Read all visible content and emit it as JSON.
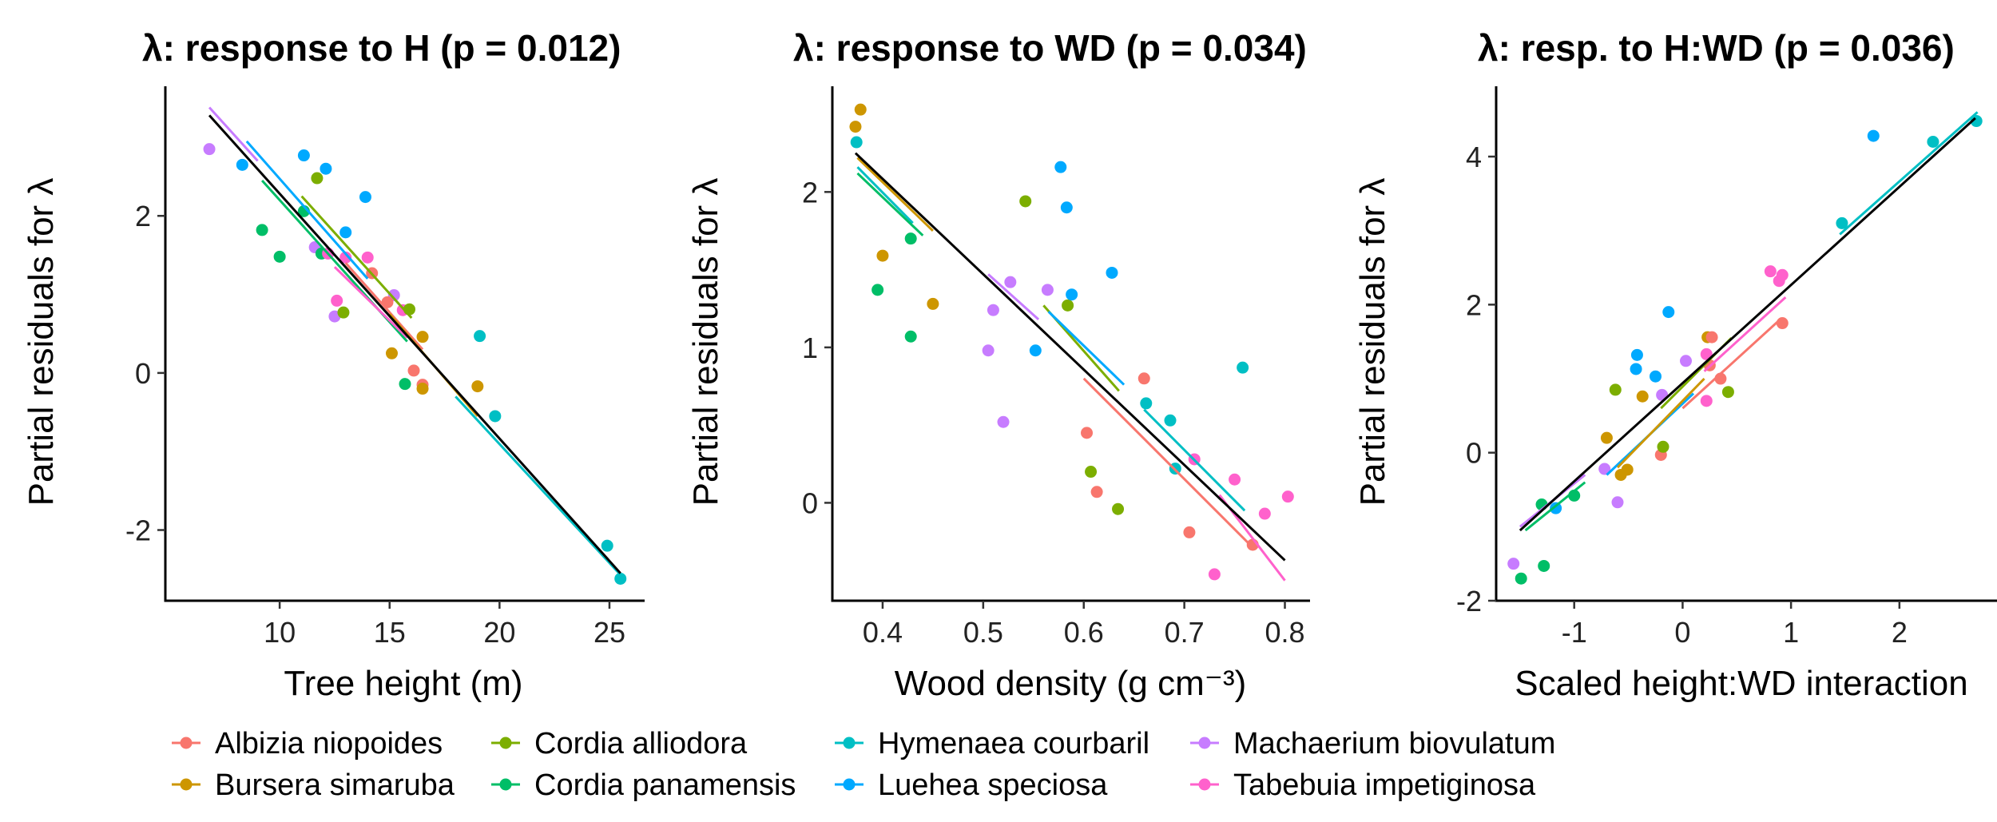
{
  "colors": {
    "Albizia niopoides": "#F8766D",
    "Bursera simaruba": "#CD9600",
    "Cordia alliodora": "#7CAE00",
    "Cordia panamensis": "#00BE67",
    "Hymenaea courbaril": "#00BFC4",
    "Luehea speciosa": "#00A9FF",
    "Machaerium biovulatum": "#C77CFF",
    "Tabebuia impetiginosa": "#FF61CC",
    "overall": "#000000"
  },
  "legend": {
    "items": [
      "Albizia niopoides",
      "Cordia alliodora",
      "Hymenaea courbaril",
      "Machaerium biovulatum",
      "Bursera simaruba",
      "Cordia panamensis",
      "Luehea speciosa",
      "Tabebuia impetiginosa"
    ]
  },
  "chart_data": [
    {
      "type": "scatter",
      "title": "λ: response to H (p = 0.012)",
      "xlabel": "Tree height (m)",
      "ylabel": "Partial residuals for λ",
      "xlim": [
        4.8,
        26.6
      ],
      "ylim": [
        -2.9,
        3.65
      ],
      "xticks": [
        10,
        15,
        20,
        25
      ],
      "yticks": [
        -2,
        0,
        2
      ],
      "overall_line": {
        "x": [
          6.8,
          25.5
        ],
        "y": [
          3.28,
          -2.55
        ]
      },
      "species_lines": [
        {
          "name": "Machaerium biovulatum",
          "x": [
            6.8,
            9.0
          ],
          "y": [
            3.38,
            2.7
          ]
        },
        {
          "name": "Luehea speciosa",
          "x": [
            8.5,
            14.0
          ],
          "y": [
            2.95,
            1.2
          ]
        },
        {
          "name": "Cordia panamensis",
          "x": [
            9.2,
            15.8
          ],
          "y": [
            2.45,
            0.4
          ]
        },
        {
          "name": "Cordia alliodora",
          "x": [
            11.0,
            16.0
          ],
          "y": [
            2.25,
            0.7
          ]
        },
        {
          "name": "Tabebuia impetiginosa",
          "x": [
            12.5,
            15.8
          ],
          "y": [
            1.35,
            0.45
          ]
        },
        {
          "name": "Albizia niopoides",
          "x": [
            13.0,
            16.5
          ],
          "y": [
            1.4,
            0.3
          ]
        },
        {
          "name": "Bursera simaruba",
          "x": [
            15.0,
            19.0
          ],
          "y": [
            0.75,
            -0.55
          ]
        },
        {
          "name": "Hymenaea courbaril",
          "x": [
            18.0,
            25.6
          ],
          "y": [
            -0.3,
            -2.6
          ]
        }
      ],
      "points": [
        {
          "s": "Machaerium biovulatum",
          "x": 6.8,
          "y": 2.85
        },
        {
          "s": "Luehea speciosa",
          "x": 8.3,
          "y": 2.65
        },
        {
          "s": "Cordia panamensis",
          "x": 9.2,
          "y": 1.82
        },
        {
          "s": "Cordia panamensis",
          "x": 10.0,
          "y": 1.48
        },
        {
          "s": "Luehea speciosa",
          "x": 11.1,
          "y": 2.77
        },
        {
          "s": "Cordia panamensis",
          "x": 11.1,
          "y": 2.06
        },
        {
          "s": "Cordia alliodora",
          "x": 11.7,
          "y": 2.48
        },
        {
          "s": "Luehea speciosa",
          "x": 12.1,
          "y": 2.6
        },
        {
          "s": "Machaerium biovulatum",
          "x": 11.6,
          "y": 1.6
        },
        {
          "s": "Cordia panamensis",
          "x": 11.9,
          "y": 1.52
        },
        {
          "s": "Tabebuia impetiginosa",
          "x": 12.2,
          "y": 1.52
        },
        {
          "s": "Luehea speciosa",
          "x": 13.0,
          "y": 1.79
        },
        {
          "s": "Tabebuia impetiginosa",
          "x": 13.0,
          "y": 1.47
        },
        {
          "s": "Luehea speciosa",
          "x": 13.9,
          "y": 2.24
        },
        {
          "s": "Tabebuia impetiginosa",
          "x": 14.0,
          "y": 1.47
        },
        {
          "s": "Albizia niopoides",
          "x": 14.2,
          "y": 1.27
        },
        {
          "s": "Tabebuia impetiginosa",
          "x": 12.6,
          "y": 0.92
        },
        {
          "s": "Machaerium biovulatum",
          "x": 12.5,
          "y": 0.72
        },
        {
          "s": "Cordia alliodora",
          "x": 12.9,
          "y": 0.77
        },
        {
          "s": "Machaerium biovulatum",
          "x": 15.2,
          "y": 0.99
        },
        {
          "s": "Albizia niopoides",
          "x": 14.9,
          "y": 0.9
        },
        {
          "s": "Tabebuia impetiginosa",
          "x": 15.6,
          "y": 0.8
        },
        {
          "s": "Cordia alliodora",
          "x": 15.9,
          "y": 0.81
        },
        {
          "s": "Bursera simaruba",
          "x": 16.5,
          "y": 0.46
        },
        {
          "s": "Bursera simaruba",
          "x": 15.1,
          "y": 0.25
        },
        {
          "s": "Albizia niopoides",
          "x": 16.1,
          "y": 0.03
        },
        {
          "s": "Cordia panamensis",
          "x": 15.7,
          "y": -0.14
        },
        {
          "s": "Albizia niopoides",
          "x": 16.5,
          "y": -0.15
        },
        {
          "s": "Bursera simaruba",
          "x": 16.5,
          "y": -0.2
        },
        {
          "s": "Bursera simaruba",
          "x": 19.0,
          "y": -0.17
        },
        {
          "s": "Hymenaea courbaril",
          "x": 19.1,
          "y": 0.47
        },
        {
          "s": "Hymenaea courbaril",
          "x": 19.8,
          "y": -0.55
        },
        {
          "s": "Hymenaea courbaril",
          "x": 24.9,
          "y": -2.2
        },
        {
          "s": "Hymenaea courbaril",
          "x": 25.5,
          "y": -2.62
        }
      ]
    },
    {
      "type": "scatter",
      "title": "λ: response to WD (p = 0.034)",
      "xlabel": "Wood density (g cm⁻³)",
      "ylabel": "Partial residuals for λ",
      "xlim": [
        0.35,
        0.825
      ],
      "ylim": [
        -0.63,
        2.68
      ],
      "xticks": [
        0.4,
        0.5,
        0.6,
        0.7,
        0.8
      ],
      "yticks": [
        0,
        1,
        2
      ],
      "overall_line": {
        "x": [
          0.373,
          0.8
        ],
        "y": [
          2.25,
          -0.37
        ]
      },
      "species_lines": [
        {
          "name": "Bursera simaruba",
          "x": [
            0.375,
            0.45
          ],
          "y": [
            2.22,
            1.75
          ]
        },
        {
          "name": "Hymenaea courbaril",
          "x": [
            0.375,
            0.43
          ],
          "y": [
            2.16,
            1.8
          ]
        },
        {
          "name": "Cordia panamensis",
          "x": [
            0.375,
            0.44
          ],
          "y": [
            2.12,
            1.72
          ]
        },
        {
          "name": "Machaerium biovulatum",
          "x": [
            0.505,
            0.555
          ],
          "y": [
            1.47,
            1.18
          ]
        },
        {
          "name": "Cordia alliodora",
          "x": [
            0.56,
            0.635
          ],
          "y": [
            1.27,
            0.72
          ]
        },
        {
          "name": "Luehea speciosa",
          "x": [
            0.565,
            0.64
          ],
          "y": [
            1.23,
            0.76
          ]
        },
        {
          "name": "Albizia niopoides",
          "x": [
            0.6,
            0.77
          ],
          "y": [
            0.8,
            -0.3
          ]
        },
        {
          "name": "Hymenaea courbaril",
          "x": [
            0.66,
            0.76
          ],
          "y": [
            0.6,
            -0.05
          ]
        },
        {
          "name": "Tabebuia impetiginosa",
          "x": [
            0.735,
            0.8
          ],
          "y": [
            0.05,
            -0.5
          ]
        }
      ],
      "points": [
        {
          "s": "Bursera simaruba",
          "x": 0.373,
          "y": 2.42
        },
        {
          "s": "Bursera simaruba",
          "x": 0.378,
          "y": 2.53
        },
        {
          "s": "Hymenaea courbaril",
          "x": 0.374,
          "y": 2.32
        },
        {
          "s": "Bursera simaruba",
          "x": 0.4,
          "y": 1.59
        },
        {
          "s": "Cordia panamensis",
          "x": 0.395,
          "y": 1.37
        },
        {
          "s": "Cordia panamensis",
          "x": 0.428,
          "y": 1.7
        },
        {
          "s": "Cordia panamensis",
          "x": 0.428,
          "y": 1.07
        },
        {
          "s": "Bursera simaruba",
          "x": 0.45,
          "y": 1.28
        },
        {
          "s": "Machaerium biovulatum",
          "x": 0.505,
          "y": 0.98
        },
        {
          "s": "Machaerium biovulatum",
          "x": 0.51,
          "y": 1.24
        },
        {
          "s": "Machaerium biovulatum",
          "x": 0.52,
          "y": 0.52
        },
        {
          "s": "Machaerium biovulatum",
          "x": 0.527,
          "y": 1.42
        },
        {
          "s": "Cordia alliodora",
          "x": 0.542,
          "y": 1.94
        },
        {
          "s": "Luehea speciosa",
          "x": 0.552,
          "y": 0.98
        },
        {
          "s": "Machaerium biovulatum",
          "x": 0.564,
          "y": 1.37
        },
        {
          "s": "Luehea speciosa",
          "x": 0.577,
          "y": 2.16
        },
        {
          "s": "Luehea speciosa",
          "x": 0.583,
          "y": 1.9
        },
        {
          "s": "Cordia alliodora",
          "x": 0.584,
          "y": 1.27
        },
        {
          "s": "Luehea speciosa",
          "x": 0.588,
          "y": 1.34
        },
        {
          "s": "Albizia niopoides",
          "x": 0.603,
          "y": 0.45
        },
        {
          "s": "Cordia alliodora",
          "x": 0.607,
          "y": 0.2
        },
        {
          "s": "Albizia niopoides",
          "x": 0.613,
          "y": 0.07
        },
        {
          "s": "Luehea speciosa",
          "x": 0.628,
          "y": 1.48
        },
        {
          "s": "Cordia alliodora",
          "x": 0.634,
          "y": -0.04
        },
        {
          "s": "Albizia niopoides",
          "x": 0.66,
          "y": 0.8
        },
        {
          "s": "Hymenaea courbaril",
          "x": 0.662,
          "y": 0.64
        },
        {
          "s": "Hymenaea courbaril",
          "x": 0.686,
          "y": 0.53
        },
        {
          "s": "Hymenaea courbaril",
          "x": 0.691,
          "y": 0.22
        },
        {
          "s": "Albizia niopoides",
          "x": 0.705,
          "y": -0.19
        },
        {
          "s": "Tabebuia impetiginosa",
          "x": 0.71,
          "y": 0.28
        },
        {
          "s": "Tabebuia impetiginosa",
          "x": 0.73,
          "y": -0.46
        },
        {
          "s": "Tabebuia impetiginosa",
          "x": 0.75,
          "y": 0.15
        },
        {
          "s": "Hymenaea courbaril",
          "x": 0.758,
          "y": 0.87
        },
        {
          "s": "Albizia niopoides",
          "x": 0.768,
          "y": -0.27
        },
        {
          "s": "Tabebuia impetiginosa",
          "x": 0.78,
          "y": -0.07
        },
        {
          "s": "Tabebuia impetiginosa",
          "x": 0.803,
          "y": 0.04
        }
      ]
    },
    {
      "type": "scatter",
      "title": "λ: resp. to H:WD (p = 0.036)",
      "xlabel": "Scaled height:WD interaction",
      "ylabel": "Partial residuals for λ",
      "xlim": [
        -1.72,
        2.9
      ],
      "ylim": [
        -2.0,
        4.95
      ],
      "xticks": [
        -1,
        0,
        1,
        2
      ],
      "yticks": [
        -2,
        0,
        2,
        4
      ],
      "overall_line": {
        "x": [
          -1.5,
          2.7
        ],
        "y": [
          -1.05,
          4.52
        ]
      },
      "species_lines": [
        {
          "name": "Machaerium biovulatum",
          "x": [
            -1.5,
            -0.9
          ],
          "y": [
            -1.0,
            -0.3
          ]
        },
        {
          "name": "Cordia panamensis",
          "x": [
            -1.45,
            -0.9
          ],
          "y": [
            -1.05,
            -0.4
          ]
        },
        {
          "name": "Luehea speciosa",
          "x": [
            -0.7,
            0.1
          ],
          "y": [
            -0.3,
            0.8
          ]
        },
        {
          "name": "Bursera simaruba",
          "x": [
            -0.6,
            0.2
          ],
          "y": [
            -0.2,
            1.0
          ]
        },
        {
          "name": "Cordia alliodora",
          "x": [
            -0.2,
            0.45
          ],
          "y": [
            0.6,
            1.55
          ]
        },
        {
          "name": "Albizia niopoides",
          "x": [
            0.0,
            0.9
          ],
          "y": [
            0.6,
            1.8
          ]
        },
        {
          "name": "Tabebuia impetiginosa",
          "x": [
            0.2,
            0.95
          ],
          "y": [
            1.1,
            2.1
          ]
        },
        {
          "name": "Hymenaea courbaril",
          "x": [
            1.45,
            2.72
          ],
          "y": [
            2.95,
            4.6
          ]
        }
      ],
      "points": [
        {
          "s": "Machaerium biovulatum",
          "x": -1.56,
          "y": -1.5
        },
        {
          "s": "Cordia panamensis",
          "x": -1.49,
          "y": -1.7
        },
        {
          "s": "Cordia panamensis",
          "x": -1.28,
          "y": -1.53
        },
        {
          "s": "Cordia panamensis",
          "x": -1.3,
          "y": -0.7
        },
        {
          "s": "Luehea speciosa",
          "x": -1.17,
          "y": -0.75
        },
        {
          "s": "Cordia panamensis",
          "x": -1.0,
          "y": -0.58
        },
        {
          "s": "Machaerium biovulatum",
          "x": -0.72,
          "y": -0.22
        },
        {
          "s": "Bursera simaruba",
          "x": -0.7,
          "y": 0.2
        },
        {
          "s": "Cordia alliodora",
          "x": -0.62,
          "y": 0.85
        },
        {
          "s": "Machaerium biovulatum",
          "x": -0.6,
          "y": -0.67
        },
        {
          "s": "Bursera simaruba",
          "x": -0.57,
          "y": -0.3
        },
        {
          "s": "Bursera simaruba",
          "x": -0.51,
          "y": -0.23
        },
        {
          "s": "Luehea speciosa",
          "x": -0.43,
          "y": 1.13
        },
        {
          "s": "Luehea speciosa",
          "x": -0.42,
          "y": 1.32
        },
        {
          "s": "Bursera simaruba",
          "x": -0.37,
          "y": 0.76
        },
        {
          "s": "Luehea speciosa",
          "x": -0.25,
          "y": 1.03
        },
        {
          "s": "Albizia niopoides",
          "x": -0.2,
          "y": -0.03
        },
        {
          "s": "Cordia alliodora",
          "x": -0.18,
          "y": 0.08
        },
        {
          "s": "Machaerium biovulatum",
          "x": -0.19,
          "y": 0.78
        },
        {
          "s": "Luehea speciosa",
          "x": -0.13,
          "y": 1.9
        },
        {
          "s": "Machaerium biovulatum",
          "x": 0.03,
          "y": 1.24
        },
        {
          "s": "Tabebuia impetiginosa",
          "x": 0.22,
          "y": 0.7
        },
        {
          "s": "Tabebuia impetiginosa",
          "x": 0.22,
          "y": 1.33
        },
        {
          "s": "Albizia niopoides",
          "x": 0.25,
          "y": 1.18
        },
        {
          "s": "Bursera simaruba",
          "x": 0.23,
          "y": 1.56
        },
        {
          "s": "Albizia niopoides",
          "x": 0.27,
          "y": 1.56
        },
        {
          "s": "Albizia niopoides",
          "x": 0.35,
          "y": 1.0
        },
        {
          "s": "Cordia alliodora",
          "x": 0.42,
          "y": 0.82
        },
        {
          "s": "Tabebuia impetiginosa",
          "x": 0.81,
          "y": 2.45
        },
        {
          "s": "Tabebuia impetiginosa",
          "x": 0.89,
          "y": 2.32
        },
        {
          "s": "Tabebuia impetiginosa",
          "x": 0.92,
          "y": 2.4
        },
        {
          "s": "Albizia niopoides",
          "x": 0.92,
          "y": 1.75
        },
        {
          "s": "Hymenaea courbaril",
          "x": 1.47,
          "y": 3.1
        },
        {
          "s": "Luehea speciosa",
          "x": 1.76,
          "y": 4.28
        },
        {
          "s": "Hymenaea courbaril",
          "x": 2.31,
          "y": 4.2
        },
        {
          "s": "Hymenaea courbaril",
          "x": 2.71,
          "y": 4.48
        }
      ]
    }
  ]
}
